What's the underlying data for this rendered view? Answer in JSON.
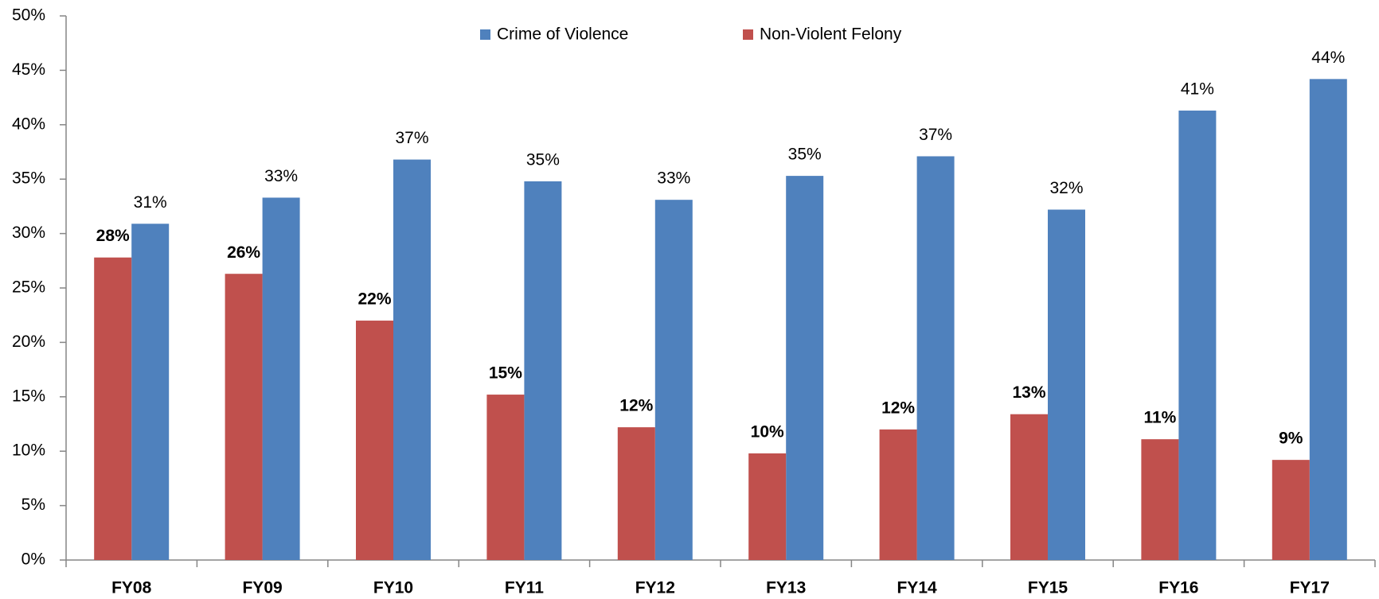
{
  "chart_data": {
    "type": "bar",
    "categories": [
      "FY08",
      "FY09",
      "FY10",
      "FY11",
      "FY12",
      "FY13",
      "FY14",
      "FY15",
      "FY16",
      "FY17"
    ],
    "series": [
      {
        "name": "Crime of Violence",
        "color": "#4f81bd",
        "values": [
          30.9,
          33.3,
          36.8,
          34.8,
          33.1,
          35.3,
          37.1,
          32.2,
          41.3,
          44.2
        ],
        "value_labels": [
          "31%",
          "33%",
          "37%",
          "35%",
          "33%",
          "35%",
          "37%",
          "32%",
          "41%",
          "44%"
        ]
      },
      {
        "name": "Non-Violent Felony",
        "color": "#c0504d",
        "values": [
          27.8,
          26.3,
          22.0,
          15.2,
          12.2,
          9.8,
          12.0,
          13.4,
          11.1,
          9.2
        ],
        "value_labels": [
          "28%",
          "26%",
          "22%",
          "15%",
          "12%",
          "10%",
          "12%",
          "13%",
          "11%",
          "9%"
        ]
      }
    ],
    "ylim": [
      0,
      50
    ],
    "yticks": [
      {
        "value": 0,
        "label": "0%"
      },
      {
        "value": 5,
        "label": "5%"
      },
      {
        "value": 10,
        "label": "10%"
      },
      {
        "value": 15,
        "label": "15%"
      },
      {
        "value": 20,
        "label": "20%"
      },
      {
        "value": 25,
        "label": "25%"
      },
      {
        "value": 30,
        "label": "30%"
      },
      {
        "value": 35,
        "label": "35%"
      },
      {
        "value": 40,
        "label": "40%"
      },
      {
        "value": 45,
        "label": "45%"
      },
      {
        "value": 50,
        "label": "50%"
      }
    ],
    "grid": false,
    "legend": "top"
  }
}
